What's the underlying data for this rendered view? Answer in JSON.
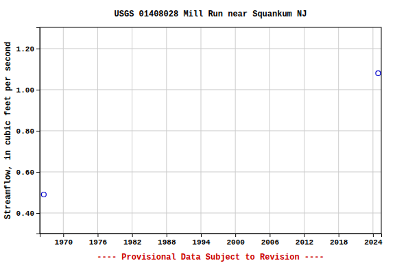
{
  "chart_data": {
    "type": "scatter",
    "title": "USGS 01408028 Mill Run near Squankum NJ",
    "y_label": "Streamflow, in cubic feet per second",
    "footer": "---- Provisional Data Subject to Revision ----",
    "x": [
      1966.6,
      2024.9
    ],
    "values": [
      0.49,
      1.08
    ],
    "color": "#0000cc",
    "marker": "circle-open",
    "xlim": [
      1965.9,
      2025.45
    ],
    "xticks": [
      1970,
      1976,
      1982,
      1988,
      1994,
      2000,
      2006,
      2012,
      2018,
      2024
    ],
    "ylim": [
      0.3,
      1.303
    ],
    "yticks": [
      {
        "value": 0.4,
        "label": "0.40"
      },
      {
        "value": 0.6,
        "label": "0.60"
      },
      {
        "value": 0.8,
        "label": "0.80"
      },
      {
        "value": 1.0,
        "label": "1.00"
      },
      {
        "value": 1.2,
        "label": "1.20"
      }
    ],
    "grid": true
  }
}
